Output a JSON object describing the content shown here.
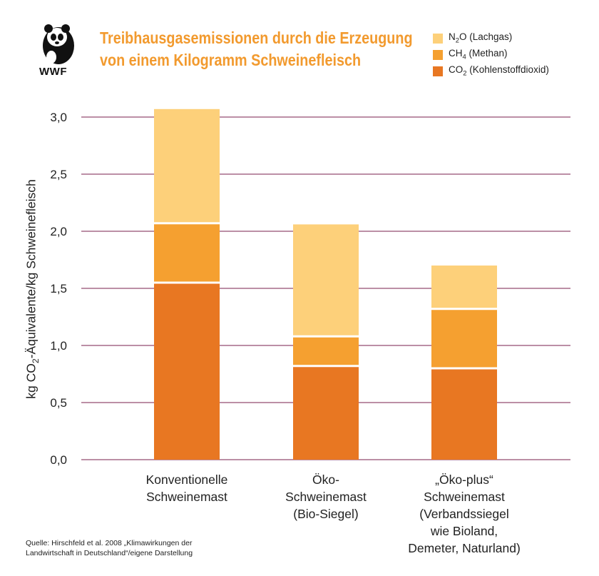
{
  "header": {
    "title_line1": "Treibhausgasemissionen durch die Erzeugung",
    "title_line2": "von einem Kilogramm Schweinefleisch",
    "logo_text": "WWF"
  },
  "legend": [
    {
      "prefix": "N",
      "sub": "2",
      "suffix": "O (Lachgas)",
      "color": "#fdd07a"
    },
    {
      "prefix": "CH",
      "sub": "4",
      "suffix": " (Methan)",
      "color": "#f5a030"
    },
    {
      "prefix": "CO",
      "sub": "2",
      "suffix": " (Kohlenstoffdioxid)",
      "color": "#e87722"
    }
  ],
  "ylabel": {
    "prefix": "kg CO",
    "sub": "2",
    "suffix": "-Äquivalente/kg Schweinefleisch"
  },
  "source": {
    "line1": "Quelle: Hirschfeld et al. 2008 „Klimawirkungen der",
    "line2": "Landwirtschaft in Deutschland“/eigene Darstellung"
  },
  "chart_data": {
    "type": "bar",
    "stacked": true,
    "categories": [
      [
        "Konventionelle",
        "Schweinemast"
      ],
      [
        "Öko-",
        "Schweinemast",
        "(Bio-Siegel)"
      ],
      [
        "„Öko-plus“",
        "Schweinemast",
        "(Verbandssiegel",
        "wie Bioland,",
        "Demeter, Naturland)"
      ]
    ],
    "series": [
      {
        "name": "CO2 (Kohlenstoffdioxid)",
        "values": [
          1.55,
          0.82,
          0.8
        ],
        "color": "#e87722"
      },
      {
        "name": "CH4 (Methan)",
        "values": [
          0.52,
          0.26,
          0.52
        ],
        "color": "#f5a030"
      },
      {
        "name": "N2O (Lachgas)",
        "values": [
          1.0,
          0.98,
          0.38
        ],
        "color": "#fdd07a"
      }
    ],
    "ylim": [
      0,
      3.0
    ],
    "yticks": [
      "0,0",
      "0,5",
      "1,0",
      "1,5",
      "2,0",
      "2,5",
      "3,0"
    ],
    "grid": true,
    "grid_color": "#7a1f4e"
  }
}
